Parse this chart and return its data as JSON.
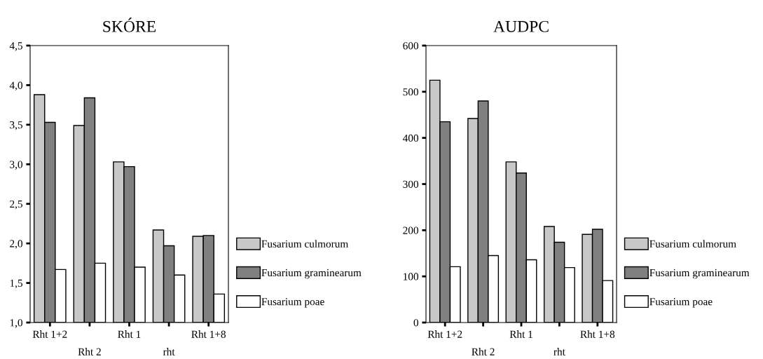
{
  "chart_data": [
    {
      "type": "bar",
      "title": "SKÓRE",
      "categories": [
        "Rht 1+2",
        "Rht 2",
        "Rht 1",
        "rht",
        "Rht 1+8"
      ],
      "ylim": [
        1.0,
        4.5
      ],
      "yticks": [
        {
          "value": 1.0,
          "label": "1,0"
        },
        {
          "value": 1.5,
          "label": "1,5"
        },
        {
          "value": 2.0,
          "label": "2,0"
        },
        {
          "value": 2.5,
          "label": "2,5"
        },
        {
          "value": 3.0,
          "label": "3,0"
        },
        {
          "value": 3.5,
          "label": "3,5"
        },
        {
          "value": 4.0,
          "label": "4,0"
        },
        {
          "value": 4.5,
          "label": "4,5"
        }
      ],
      "grid": false,
      "legend": "right",
      "series": [
        {
          "name": "Fusarium culmorum",
          "color": "#c8c8c8",
          "values": [
            3.88,
            3.49,
            3.03,
            2.17,
            2.09
          ]
        },
        {
          "name": "Fusarium graminearum",
          "color": "#808080",
          "values": [
            3.53,
            3.84,
            2.97,
            1.97,
            2.1
          ]
        },
        {
          "name": "Fusarium poae",
          "color": "#ffffff",
          "values": [
            1.67,
            1.75,
            1.7,
            1.6,
            1.36
          ]
        }
      ]
    },
    {
      "type": "bar",
      "title": "AUDPC",
      "categories": [
        "Rht 1+2",
        "Rht 2",
        "Rht 1",
        "rht",
        "Rht 1+8"
      ],
      "ylim": [
        0,
        600
      ],
      "yticks": [
        0,
        100,
        200,
        300,
        400,
        500,
        600
      ],
      "grid": false,
      "legend": "right",
      "series": [
        {
          "name": "Fusarium culmorum",
          "color": "#c8c8c8",
          "values": [
            525,
            442,
            348,
            208,
            191
          ]
        },
        {
          "name": "Fusarium graminearum",
          "color": "#808080",
          "values": [
            435,
            480,
            324,
            174,
            202
          ]
        },
        {
          "name": "Fusarium poae",
          "color": "#ffffff",
          "values": [
            121,
            145,
            136,
            119,
            91
          ]
        }
      ]
    }
  ]
}
